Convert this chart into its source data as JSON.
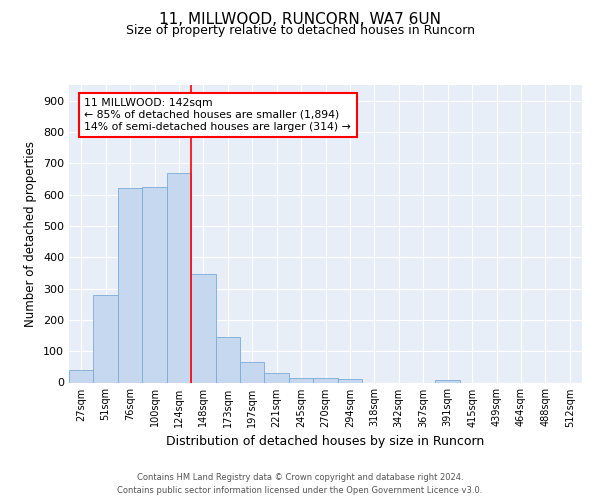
{
  "title": "11, MILLWOOD, RUNCORN, WA7 6UN",
  "subtitle": "Size of property relative to detached houses in Runcorn",
  "xlabel": "Distribution of detached houses by size in Runcorn",
  "ylabel": "Number of detached properties",
  "bar_labels": [
    "27sqm",
    "51sqm",
    "76sqm",
    "100sqm",
    "124sqm",
    "148sqm",
    "173sqm",
    "197sqm",
    "221sqm",
    "245sqm",
    "270sqm",
    "294sqm",
    "318sqm",
    "342sqm",
    "367sqm",
    "391sqm",
    "415sqm",
    "439sqm",
    "464sqm",
    "488sqm",
    "512sqm"
  ],
  "bar_values": [
    40,
    280,
    620,
    625,
    670,
    345,
    145,
    65,
    30,
    13,
    13,
    10,
    0,
    0,
    0,
    8,
    0,
    0,
    0,
    0,
    0
  ],
  "bar_color": "#c5d8f0",
  "bar_edge_color": "#7aabd4",
  "vline_x": 4.5,
  "annotation_line1": "11 MILLWOOD: 142sqm",
  "annotation_line2": "← 85% of detached houses are smaller (1,894)",
  "annotation_line3": "14% of semi-detached houses are larger (314) →",
  "annotation_box_color": "white",
  "annotation_box_edge_color": "red",
  "vline_color": "red",
  "ylim": [
    0,
    950
  ],
  "yticks": [
    0,
    100,
    200,
    300,
    400,
    500,
    600,
    700,
    800,
    900
  ],
  "footer": "Contains HM Land Registry data © Crown copyright and database right 2024.\nContains public sector information licensed under the Open Government Licence v3.0.",
  "background_color": "#ffffff",
  "plot_background_color": "#e8eef8"
}
